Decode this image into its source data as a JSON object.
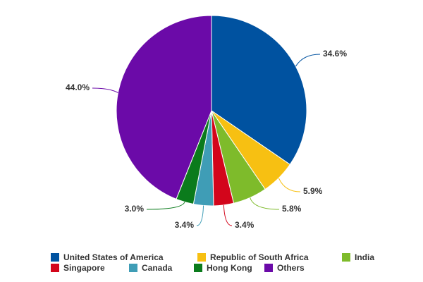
{
  "chart_data": {
    "type": "pie",
    "categories": [
      "United States of America",
      "Republic of South Africa",
      "India",
      "Singapore",
      "Canada",
      "Hong Kong",
      "Others"
    ],
    "values": [
      34.6,
      5.9,
      5.8,
      3.4,
      3.4,
      3.0,
      44.0
    ],
    "value_labels": [
      "34.6%",
      "5.9%",
      "5.8%",
      "3.4%",
      "3.4%",
      "3.0%",
      "44.0%"
    ],
    "colors": [
      "#0052a0",
      "#f7c012",
      "#7ebb2b",
      "#d3051b",
      "#3f9db6",
      "#0b7b1c",
      "#6b0aa8"
    ],
    "legend": "bottom"
  }
}
